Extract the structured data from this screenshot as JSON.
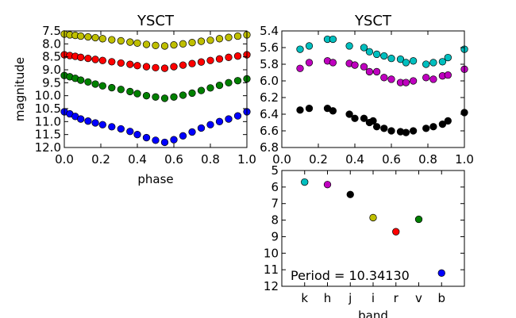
{
  "chart_data": [
    {
      "id": "phase-curves",
      "type": "scatter",
      "title": "YSCT",
      "xlabel": "phase",
      "ylabel": "magnitude",
      "xlim": [
        0.0,
        1.0
      ],
      "ylim": [
        7.5,
        12.0
      ],
      "y_inverted": true,
      "xticks": [
        "0.0",
        "0.2",
        "0.4",
        "0.6",
        "0.8",
        "1.0"
      ],
      "yticks": [
        "7.5",
        "8.0",
        "8.5",
        "9.0",
        "9.5",
        "10.0",
        "10.5",
        "11.0",
        "11.5",
        "12.0"
      ],
      "series": [
        {
          "color": "#bfbf00",
          "x": [
            0.0,
            0.03,
            0.06,
            0.09,
            0.13,
            0.17,
            0.21,
            0.26,
            0.31,
            0.36,
            0.4,
            0.45,
            0.5,
            0.55,
            0.6,
            0.65,
            0.7,
            0.75,
            0.8,
            0.85,
            0.9,
            0.95,
            1.0
          ],
          "y": [
            7.62,
            7.65,
            7.67,
            7.7,
            7.73,
            7.76,
            7.8,
            7.84,
            7.88,
            7.93,
            7.97,
            8.02,
            8.06,
            8.08,
            8.04,
            8.0,
            7.95,
            7.9,
            7.86,
            7.8,
            7.75,
            7.7,
            7.65
          ]
        },
        {
          "color": "#ff0000",
          "x": [
            0.0,
            0.03,
            0.06,
            0.09,
            0.13,
            0.17,
            0.21,
            0.26,
            0.31,
            0.36,
            0.4,
            0.45,
            0.5,
            0.55,
            0.6,
            0.65,
            0.7,
            0.75,
            0.8,
            0.85,
            0.9,
            0.95,
            1.0
          ],
          "y": [
            8.42,
            8.45,
            8.48,
            8.52,
            8.56,
            8.6,
            8.64,
            8.69,
            8.74,
            8.79,
            8.84,
            8.88,
            8.92,
            8.94,
            8.88,
            8.82,
            8.76,
            8.7,
            8.64,
            8.58,
            8.52,
            8.47,
            8.42
          ]
        },
        {
          "color": "#008000",
          "x": [
            0.0,
            0.03,
            0.06,
            0.09,
            0.13,
            0.17,
            0.21,
            0.26,
            0.31,
            0.36,
            0.4,
            0.45,
            0.5,
            0.55,
            0.6,
            0.65,
            0.7,
            0.75,
            0.8,
            0.85,
            0.9,
            0.95,
            1.0
          ],
          "y": [
            9.22,
            9.27,
            9.33,
            9.4,
            9.47,
            9.55,
            9.62,
            9.69,
            9.76,
            9.84,
            9.92,
            10.0,
            10.05,
            10.1,
            10.05,
            9.98,
            9.9,
            9.8,
            9.7,
            9.6,
            9.5,
            9.42,
            9.35
          ]
        },
        {
          "color": "#0000ff",
          "x": [
            0.0,
            0.03,
            0.06,
            0.09,
            0.13,
            0.17,
            0.21,
            0.26,
            0.31,
            0.36,
            0.4,
            0.45,
            0.5,
            0.55,
            0.6,
            0.65,
            0.7,
            0.75,
            0.8,
            0.85,
            0.9,
            0.95,
            1.0
          ],
          "y": [
            10.62,
            10.7,
            10.8,
            10.9,
            10.98,
            11.05,
            11.12,
            11.2,
            11.28,
            11.38,
            11.5,
            11.62,
            11.72,
            11.8,
            11.7,
            11.55,
            11.4,
            11.25,
            11.12,
            11.0,
            10.9,
            10.78,
            10.62
          ]
        }
      ]
    },
    {
      "id": "phase-curves-nir",
      "type": "scatter",
      "title": "YSCT",
      "xlabel": "",
      "ylabel": "",
      "xlim": [
        0.0,
        1.0
      ],
      "ylim": [
        5.4,
        6.8
      ],
      "y_inverted": true,
      "xticks": [
        "0.0",
        "0.2",
        "0.4",
        "0.6",
        "0.8",
        "1.0"
      ],
      "yticks": [
        "5.4",
        "5.6",
        "5.8",
        "6.0",
        "6.2",
        "6.4",
        "6.6",
        "6.8"
      ],
      "series": [
        {
          "color": "#00bfbf",
          "x": [
            0.1,
            0.15,
            0.25,
            0.28,
            0.37,
            0.45,
            0.48,
            0.52,
            0.56,
            0.6,
            0.65,
            0.68,
            0.72,
            0.79,
            0.83,
            0.88,
            0.91,
            1.0
          ],
          "y": [
            5.62,
            5.58,
            5.5,
            5.5,
            5.58,
            5.6,
            5.65,
            5.68,
            5.7,
            5.73,
            5.74,
            5.78,
            5.76,
            5.8,
            5.78,
            5.77,
            5.72,
            5.62
          ]
        },
        {
          "color": "#bf00bf",
          "x": [
            0.1,
            0.15,
            0.25,
            0.28,
            0.37,
            0.4,
            0.45,
            0.48,
            0.52,
            0.56,
            0.6,
            0.65,
            0.68,
            0.72,
            0.79,
            0.83,
            0.88,
            0.91,
            1.0
          ],
          "y": [
            5.85,
            5.78,
            5.76,
            5.78,
            5.79,
            5.81,
            5.83,
            5.89,
            5.89,
            5.96,
            5.98,
            6.02,
            6.02,
            6.0,
            5.96,
            5.98,
            5.94,
            5.93,
            5.86
          ]
        },
        {
          "color": "#000000",
          "x": [
            0.1,
            0.15,
            0.25,
            0.28,
            0.37,
            0.4,
            0.45,
            0.48,
            0.5,
            0.52,
            0.56,
            0.6,
            0.65,
            0.68,
            0.72,
            0.79,
            0.83,
            0.88,
            0.91,
            1.0
          ],
          "y": [
            6.35,
            6.33,
            6.33,
            6.36,
            6.4,
            6.45,
            6.45,
            6.5,
            6.48,
            6.55,
            6.57,
            6.6,
            6.61,
            6.62,
            6.6,
            6.57,
            6.55,
            6.52,
            6.48,
            6.38
          ]
        }
      ]
    },
    {
      "id": "band-magnitudes",
      "type": "scatter",
      "title": "",
      "xlabel": "band",
      "ylabel": "",
      "ylim": [
        5,
        12
      ],
      "y_inverted": true,
      "categories": [
        "k",
        "h",
        "j",
        "i",
        "r",
        "v",
        "b"
      ],
      "yticks": [
        "5",
        "6",
        "7",
        "8",
        "9",
        "10",
        "11",
        "12"
      ],
      "values": [
        5.7,
        5.85,
        6.45,
        7.85,
        8.7,
        7.95,
        11.2
      ],
      "colors": [
        "#00bfbf",
        "#bf00bf",
        "#000000",
        "#bfbf00",
        "#ff0000",
        "#008000",
        "#0000ff"
      ],
      "annotation": "Period = 10.34130"
    }
  ]
}
